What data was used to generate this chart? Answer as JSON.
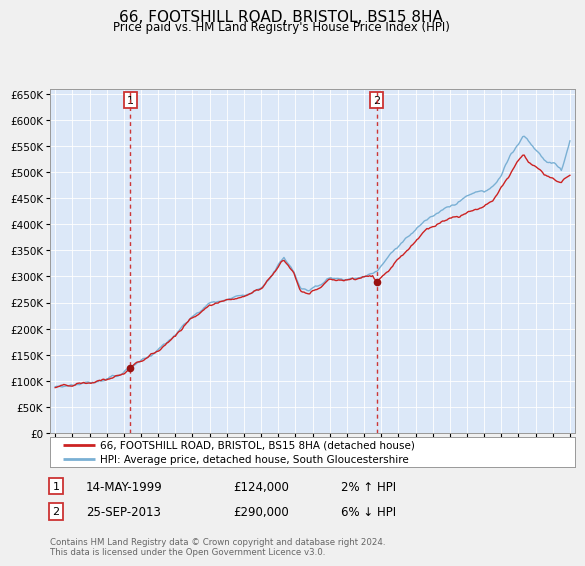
{
  "title": "66, FOOTSHILL ROAD, BRISTOL, BS15 8HA",
  "subtitle": "Price paid vs. HM Land Registry's House Price Index (HPI)",
  "bg_color": "#f0f0f0",
  "plot_bg_color": "#dce8f8",
  "hpi_color": "#7ab0d4",
  "price_color": "#cc2222",
  "marker_color": "#991111",
  "vline_color": "#cc3333",
  "ylim": [
    0,
    660000
  ],
  "yticks": [
    0,
    50000,
    100000,
    150000,
    200000,
    250000,
    300000,
    350000,
    400000,
    450000,
    500000,
    550000,
    600000,
    650000
  ],
  "start_year": 1995,
  "end_year": 2025,
  "purchase1_year": 1999.37,
  "purchase1_price": 124000,
  "purchase1_label": "1",
  "purchase1_date": "14-MAY-1999",
  "purchase1_hpi_diff": "2% ↑ HPI",
  "purchase2_year": 2013.73,
  "purchase2_price": 290000,
  "purchase2_label": "2",
  "purchase2_date": "25-SEP-2013",
  "purchase2_hpi_diff": "6% ↓ HPI",
  "legend_line1": "66, FOOTSHILL ROAD, BRISTOL, BS15 8HA (detached house)",
  "legend_line2": "HPI: Average price, detached house, South Gloucestershire",
  "footer": "Contains HM Land Registry data © Crown copyright and database right 2024.\nThis data is licensed under the Open Government Licence v3.0."
}
